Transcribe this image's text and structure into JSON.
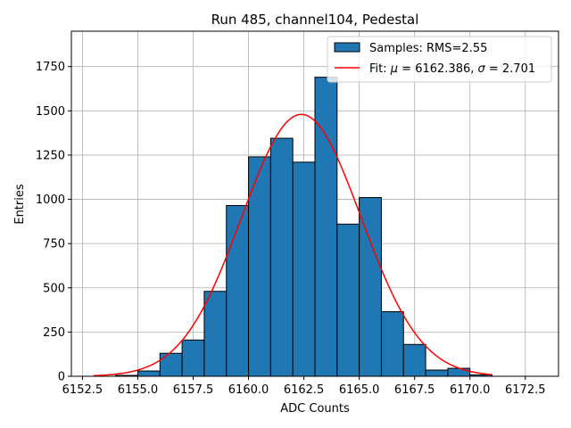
{
  "chart_data": {
    "type": "bar",
    "title": "Run 485, channel104, Pedestal",
    "xlabel": "ADC Counts",
    "ylabel": "Entries",
    "xlim": [
      6152.0,
      6174.0
    ],
    "ylim": [
      0,
      1950
    ],
    "xticks": [
      6152.5,
      6155.0,
      6157.5,
      6160.0,
      6162.5,
      6165.0,
      6167.5,
      6170.0,
      6172.5
    ],
    "xtick_labels": [
      "6152.5",
      "6155.0",
      "6157.5",
      "6160.0",
      "6162.5",
      "6165.0",
      "6167.5",
      "6170.0",
      "6172.5"
    ],
    "yticks": [
      0,
      250,
      500,
      750,
      1000,
      1250,
      1500,
      1750
    ],
    "ytick_labels": [
      "0",
      "250",
      "500",
      "750",
      "1000",
      "1250",
      "1500",
      "1750"
    ],
    "grid": true,
    "legend_position": "top-right",
    "bar_color": "#1f77b4",
    "fit_color": "#ff0000",
    "bins": [
      {
        "left": 6154,
        "right": 6155,
        "count": 5
      },
      {
        "left": 6155,
        "right": 6156,
        "count": 30
      },
      {
        "left": 6156,
        "right": 6157,
        "count": 130
      },
      {
        "left": 6157,
        "right": 6158,
        "count": 205
      },
      {
        "left": 6158,
        "right": 6159,
        "count": 480
      },
      {
        "left": 6159,
        "right": 6160,
        "count": 965
      },
      {
        "left": 6160,
        "right": 6161,
        "count": 1240
      },
      {
        "left": 6161,
        "right": 6162,
        "count": 1345
      },
      {
        "left": 6162,
        "right": 6163,
        "count": 1210
      },
      {
        "left": 6163,
        "right": 6164,
        "count": 1690
      },
      {
        "left": 6164,
        "right": 6165,
        "count": 860
      },
      {
        "left": 6165,
        "right": 6166,
        "count": 1010
      },
      {
        "left": 6166,
        "right": 6167,
        "count": 365
      },
      {
        "left": 6167,
        "right": 6168,
        "count": 180
      },
      {
        "left": 6168,
        "right": 6169,
        "count": 35
      },
      {
        "left": 6169,
        "right": 6170,
        "count": 45
      },
      {
        "left": 6170,
        "right": 6171,
        "count": 8
      }
    ],
    "fit": {
      "mu": 6162.386,
      "sigma": 2.701,
      "amplitude": 1480,
      "x_range": [
        6153.0,
        6171.0
      ]
    },
    "legend": {
      "samples_label": "Samples: RMS=2.55",
      "fit_label_prefix": "Fit: ",
      "fit_mu_symbol": "μ",
      "fit_mu_text": " = 6162.386, ",
      "fit_sigma_symbol": "σ",
      "fit_sigma_text": " = 2.701"
    }
  }
}
